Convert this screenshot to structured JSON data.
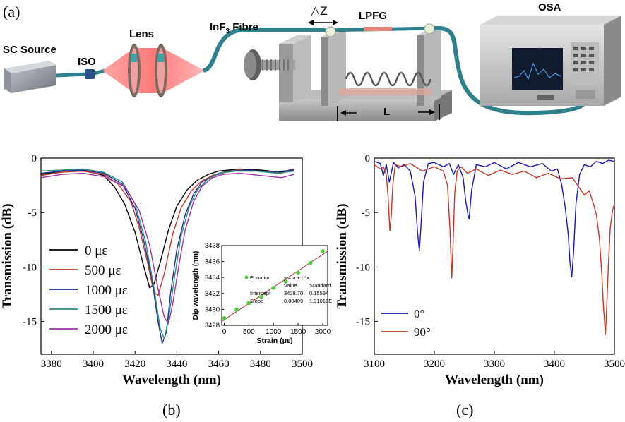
{
  "panel_a": {
    "label": "(a)",
    "sc_source": "SC Source",
    "iso": "ISO",
    "lens": "Lens",
    "fibre_main": "InF",
    "fibre_sub": "3",
    "fibre_tail": " Fibre",
    "delta_z": "△Z",
    "lpfg": "LPFG",
    "osa": "OSA",
    "length": "L"
  },
  "panel_labels": {
    "b": "(b)",
    "c": "(c)"
  },
  "chart_data": [
    {
      "type": "line",
      "panel": "b",
      "xlabel": "Wavelength (nm)",
      "ylabel": "Transmission (dB)",
      "xlim": [
        3375,
        3500
      ],
      "ylim": [
        -18,
        0
      ],
      "xticks": [
        3380,
        3400,
        3420,
        3440,
        3460,
        3480,
        3500
      ],
      "yticks": [
        0,
        -5,
        -10,
        -15
      ],
      "ytick_labels": [
        "0",
        "-5",
        "-10",
        "-15"
      ],
      "legend_position": "left-center",
      "series": [
        {
          "name": "0 με",
          "color": "#000000",
          "x": [
            3375,
            3385,
            3395,
            3405,
            3410,
            3415,
            3420,
            3424,
            3427,
            3429,
            3432,
            3436,
            3440,
            3445,
            3450,
            3455,
            3460,
            3470,
            3480,
            3490,
            3496
          ],
          "y": [
            -1.5,
            -1.2,
            -1.1,
            -1.6,
            -2.6,
            -4.2,
            -6.8,
            -9.8,
            -11.9,
            -11.6,
            -9.6,
            -6.6,
            -4.4,
            -2.9,
            -2.0,
            -1.5,
            -1.2,
            -1.0,
            -1.1,
            -1.3,
            -1.0
          ]
        },
        {
          "name": "500 με",
          "color": "#c0392b",
          "x": [
            3375,
            3385,
            3395,
            3405,
            3412,
            3418,
            3422,
            3426,
            3429,
            3431,
            3434,
            3438,
            3442,
            3447,
            3452,
            3457,
            3462,
            3470,
            3480,
            3490,
            3496
          ],
          "y": [
            -1.6,
            -1.3,
            -1.2,
            -1.5,
            -2.4,
            -4.0,
            -6.4,
            -9.6,
            -12.3,
            -12.6,
            -10.6,
            -7.0,
            -4.6,
            -3.0,
            -2.1,
            -1.6,
            -1.3,
            -1.1,
            -1.2,
            -1.4,
            -1.0
          ]
        },
        {
          "name": "1000 με",
          "color": "#1f2f8f",
          "x": [
            3375,
            3385,
            3395,
            3405,
            3414,
            3420,
            3424,
            3428,
            3431,
            3433,
            3435,
            3437,
            3440,
            3444,
            3448,
            3452,
            3458,
            3465,
            3475,
            3485,
            3496
          ],
          "y": [
            -1.4,
            -1.2,
            -1.1,
            -1.4,
            -2.4,
            -4.6,
            -7.4,
            -11.0,
            -15.0,
            -17.0,
            -16.0,
            -12.4,
            -8.4,
            -5.2,
            -3.3,
            -2.2,
            -1.6,
            -1.2,
            -1.1,
            -1.3,
            -1.1
          ]
        },
        {
          "name": "1500 με",
          "color": "#2a8a80",
          "x": [
            3375,
            3385,
            3395,
            3405,
            3414,
            3420,
            3425,
            3429,
            3432,
            3434,
            3436,
            3439,
            3442,
            3446,
            3450,
            3455,
            3460,
            3468,
            3478,
            3488,
            3496
          ],
          "y": [
            -1.2,
            -1.1,
            -1.0,
            -1.3,
            -2.2,
            -4.2,
            -7.6,
            -11.8,
            -15.6,
            -16.6,
            -14.8,
            -10.8,
            -7.2,
            -4.4,
            -2.9,
            -1.9,
            -1.4,
            -1.2,
            -1.2,
            -1.4,
            -1.2
          ]
        },
        {
          "name": "2000 με",
          "color": "#a032a8",
          "x": [
            3375,
            3385,
            3395,
            3405,
            3415,
            3422,
            3427,
            3431,
            3434,
            3436,
            3438,
            3441,
            3444,
            3448,
            3452,
            3457,
            3462,
            3470,
            3480,
            3490,
            3496
          ],
          "y": [
            -1.8,
            -1.5,
            -1.4,
            -1.7,
            -2.6,
            -4.8,
            -8.0,
            -12.0,
            -14.6,
            -15.2,
            -13.4,
            -9.8,
            -6.6,
            -4.0,
            -2.6,
            -1.8,
            -1.5,
            -1.4,
            -1.6,
            -1.8,
            -1.5
          ]
        }
      ],
      "inset": {
        "type": "scatter",
        "xlabel": "Strain (με)",
        "ylabel": "Dip wavelength (nm)",
        "xlim": [
          -50,
          2100
        ],
        "ylim": [
          3428,
          3438
        ],
        "xticks": [
          0,
          500,
          1000,
          1500,
          2000
        ],
        "yticks": [
          3428,
          3430,
          3432,
          3434,
          3436,
          3438
        ],
        "points_x": [
          0,
          250,
          500,
          750,
          1000,
          1250,
          1500,
          1750,
          2000
        ],
        "points_y": [
          3428.9,
          3430.0,
          3430.8,
          3431.6,
          3432.7,
          3433.5,
          3434.6,
          3435.8,
          3437.3
        ],
        "fit": {
          "intercept": 3428.7,
          "slope": 0.00409
        },
        "stats": {
          "row0": [
            "Equation",
            "y = a + b*x",
            ""
          ],
          "row1": [
            "",
            "Value",
            "Standard"
          ],
          "row2": [
            "Intercept",
            "3428.70",
            "0.15594"
          ],
          "row3": [
            "Slope",
            "0.00409",
            "1.31018E"
          ]
        }
      }
    },
    {
      "type": "line",
      "panel": "c",
      "xlabel": "Wavelength (nm)",
      "ylabel": "Transmission (dB)",
      "xlim": [
        3100,
        3500
      ],
      "ylim": [
        -18,
        0
      ],
      "xticks": [
        3100,
        3200,
        3300,
        3400,
        3500
      ],
      "yticks": [
        0,
        -5,
        -10,
        -15
      ],
      "ytick_labels": [
        "0",
        "-5",
        "-10",
        "-15"
      ],
      "legend_position": "bottom-left",
      "series": [
        {
          "name": "0°",
          "color": "#1a1aa8",
          "x": [
            3100,
            3110,
            3115,
            3120,
            3125,
            3132,
            3140,
            3150,
            3160,
            3168,
            3172,
            3175,
            3178,
            3182,
            3190,
            3200,
            3215,
            3225,
            3232,
            3240,
            3248,
            3252,
            3256,
            3258,
            3262,
            3270,
            3285,
            3300,
            3320,
            3340,
            3360,
            3380,
            3395,
            3405,
            3412,
            3418,
            3423,
            3426,
            3429,
            3432,
            3436,
            3442,
            3450,
            3460,
            3470,
            3480,
            3490,
            3500
          ],
          "y": [
            -0.3,
            -0.5,
            -1.6,
            -0.6,
            -2.2,
            -0.4,
            -0.9,
            -0.6,
            -1.2,
            -3.5,
            -6.8,
            -8.5,
            -6.0,
            -2.2,
            -0.5,
            -0.4,
            -0.8,
            -0.5,
            -1.5,
            -0.6,
            -1.8,
            -3.8,
            -5.2,
            -5.6,
            -3.0,
            -0.6,
            -0.8,
            -0.4,
            -1.0,
            -0.4,
            -0.8,
            -0.5,
            -1.2,
            -1.0,
            -2.4,
            -4.5,
            -7.0,
            -9.6,
            -10.9,
            -8.6,
            -4.2,
            -1.5,
            -0.6,
            -0.8,
            -0.3,
            -0.5,
            -0.2,
            -0.3
          ]
        },
        {
          "name": "90°",
          "color": "#c0392b",
          "x": [
            3100,
            3110,
            3115,
            3120,
            3123,
            3126,
            3128,
            3131,
            3135,
            3145,
            3160,
            3180,
            3200,
            3215,
            3222,
            3226,
            3229,
            3231,
            3234,
            3238,
            3245,
            3255,
            3270,
            3290,
            3310,
            3330,
            3350,
            3370,
            3390,
            3410,
            3430,
            3440,
            3450,
            3458,
            3465,
            3470,
            3475,
            3479,
            3482,
            3485,
            3487,
            3490,
            3493,
            3497,
            3500
          ],
          "y": [
            -0.6,
            -1.0,
            -0.8,
            -1.5,
            -3.5,
            -6.7,
            -5.5,
            -2.4,
            -0.6,
            -0.8,
            -0.5,
            -1.2,
            -0.8,
            -1.2,
            -2.5,
            -6.5,
            -11.0,
            -8.2,
            -3.2,
            -1.2,
            -0.8,
            -1.4,
            -1.0,
            -1.6,
            -1.1,
            -1.5,
            -1.2,
            -1.8,
            -1.4,
            -1.9,
            -1.8,
            -2.6,
            -3.4,
            -3.0,
            -4.2,
            -5.2,
            -7.4,
            -10.6,
            -13.8,
            -16.2,
            -14.0,
            -9.8,
            -6.4,
            -4.8,
            -4.2
          ]
        }
      ]
    }
  ]
}
